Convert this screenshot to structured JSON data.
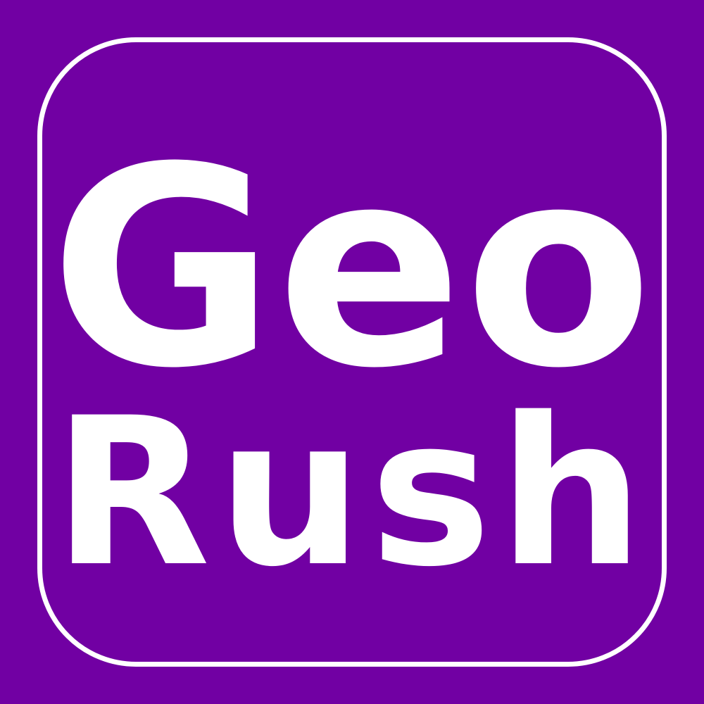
{
  "app_icon": {
    "line1": "Geo",
    "line2": "Rush",
    "colors": {
      "background": "#7100A3",
      "text": "#FFFFFF",
      "border": "#FFFFFF"
    }
  }
}
